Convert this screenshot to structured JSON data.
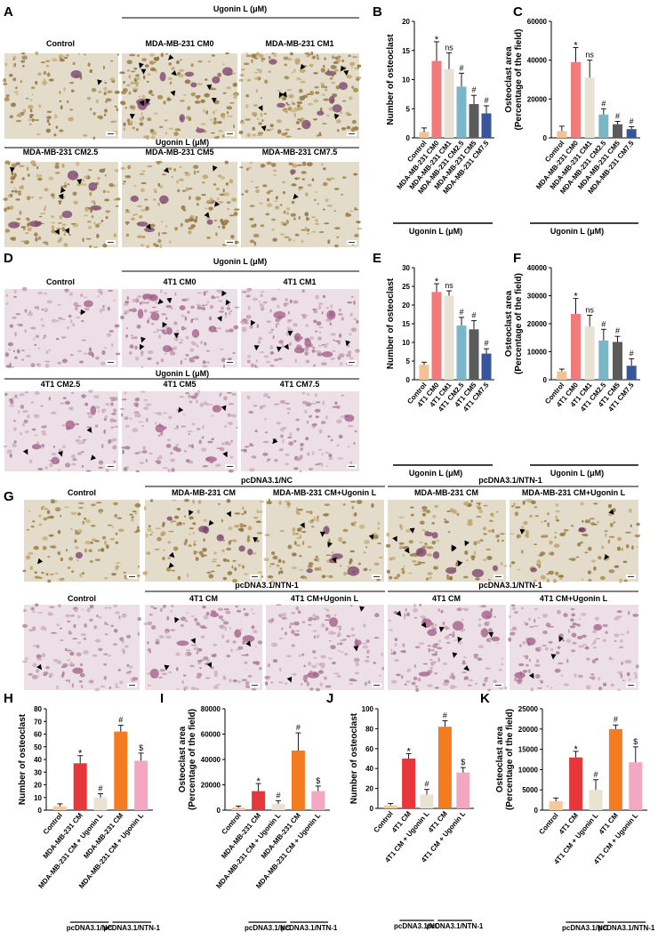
{
  "panels": {
    "A": {
      "label": "A",
      "group_label": "Ugonin L (μM)",
      "group_label_2": "Ugonin L (μM)",
      "images": [
        "Control",
        "MDA-MB-231 CM0",
        "MDA-MB-231 CM1",
        "MDA-MB-231 CM2.5",
        "MDA-MB-231 CM5",
        "MDA-MB-231 CM7.5"
      ]
    },
    "D": {
      "label": "D",
      "group_label": "Ugonin L (μM)",
      "group_label_2": "Ugonin L (μM)",
      "images": [
        "Control",
        "4T1 CM0",
        "4T1 CM1",
        "4T1 CM2.5",
        "4T1 CM5",
        "4T1 CM7.5"
      ]
    },
    "G": {
      "label": "G",
      "row1_groups": [
        "pcDNA3.1/NC",
        "pcDNA3.1/NTN-1"
      ],
      "row1_images": [
        "Control",
        "MDA-MB-231 CM",
        "MDA-MB-231 CM+Ugonin L",
        "MDA-MB-231 CM",
        "MDA-MB-231 CM+Ugonin L"
      ],
      "row2_groups": [
        "pcDNA3.1/NTN-1",
        "pcDNA3.1/NTN-1"
      ],
      "row2_images": [
        "Control",
        "4T1 CM",
        "4T1 CM+Ugonin L",
        "4T1 CM",
        "4T1 CM+Ugonin L"
      ]
    }
  },
  "colors": {
    "control": "#f2c294",
    "cm0": "#f27a7a",
    "cm1": "#e8e2d4",
    "cm25": "#79b6c8",
    "cm5": "#5b5b5b",
    "cm75": "#36559a",
    "h_control": "#f5c89e",
    "h_cm": "#e8373a",
    "h_cmug": "#e9e3d2",
    "h_ntn": "#f47c20",
    "h_ntnug": "#f4a7c1"
  },
  "chart_data": [
    {
      "panel": "B",
      "type": "bar",
      "ylabel": "Number of osteoclast",
      "ylim": [
        0,
        20
      ],
      "yticks": [
        0,
        5,
        10,
        15,
        20
      ],
      "categories": [
        "Control",
        "MDA-MB-231 CM0",
        "MDA-MB-231 CM1",
        "MDA-MB-231 CM2.5",
        "MDA-MB-231 CM5",
        "MDA-MB-231 CM7.5"
      ],
      "values": [
        1,
        13.2,
        11.8,
        8.8,
        5.8,
        4.2
      ],
      "errors": [
        0.7,
        3.3,
        2.8,
        2.3,
        1.5,
        1.3
      ],
      "marks": [
        "",
        "*",
        "ns",
        "#",
        "#",
        "#"
      ],
      "group_label": "Ugonin L (μM)"
    },
    {
      "panel": "C",
      "type": "bar",
      "ylabel": "Osteoclast area\n(Percentage of the field)",
      "ylim": [
        0,
        60000
      ],
      "yticks": [
        0,
        20000,
        40000,
        60000
      ],
      "categories": [
        "Control",
        "MDA-MB-231 CM0",
        "MDA-MB-231 CM1",
        "MDA-MB-231 CM2.5",
        "MDA-MB-231 CM5",
        "MDA-MB-231 CM7.5"
      ],
      "values": [
        3500,
        39000,
        31000,
        12000,
        7000,
        4500
      ],
      "errors": [
        2500,
        7500,
        9000,
        3000,
        1500,
        1200
      ],
      "marks": [
        "",
        "*",
        "ns",
        "#",
        "#",
        "#"
      ],
      "group_label": "Ugonin L (μM)"
    },
    {
      "panel": "E",
      "type": "bar",
      "ylabel": "Number of osteoclast",
      "ylim": [
        0,
        30
      ],
      "yticks": [
        0,
        5,
        10,
        15,
        20,
        25,
        30
      ],
      "categories": [
        "Control",
        "4T1 CM0",
        "4T1 CM1",
        "4T1 CM2.5",
        "4T1 CM5",
        "4T1 CM7.5"
      ],
      "values": [
        4,
        23.5,
        22.5,
        14.5,
        13.5,
        7
      ],
      "errors": [
        0.7,
        2.2,
        1.3,
        2.2,
        2.3,
        1.3
      ],
      "marks": [
        "",
        "*",
        "ns",
        "#",
        "#",
        "#"
      ],
      "group_label": "Ugonin L (μM)"
    },
    {
      "panel": "F",
      "type": "bar",
      "ylabel": "Osteoclast area\n(Percentage of the field)",
      "ylim": [
        0,
        40000
      ],
      "yticks": [
        0,
        10000,
        20000,
        30000,
        40000
      ],
      "categories": [
        "Control",
        "4T1 CM0",
        "4T1 CM1",
        "4T1 CM2.5",
        "4T1 CM5",
        "4T1 CM7.5"
      ],
      "values": [
        3000,
        23500,
        19000,
        14000,
        13500,
        5000
      ],
      "errors": [
        800,
        5500,
        4000,
        4000,
        2000,
        2500
      ],
      "marks": [
        "",
        "*",
        "ns",
        "#",
        "#",
        "#"
      ],
      "group_label": "Ugonin L (μM)"
    },
    {
      "panel": "H",
      "type": "bar",
      "ylabel": "Number of osteoclast",
      "ylim": [
        0,
        80
      ],
      "yticks": [
        0,
        10,
        20,
        30,
        40,
        50,
        60,
        70,
        80
      ],
      "categories": [
        "Control",
        "MDA-MB-231 CM",
        "MDA-MB-231 CM + Ugonin L",
        "MDA-MB-231 CM",
        "MDA-MB-231 CM + Ugonin L"
      ],
      "values": [
        3,
        37,
        10,
        62,
        39
      ],
      "errors": [
        2,
        6,
        3,
        5,
        6
      ],
      "marks": [
        "",
        "*",
        "#",
        "#",
        "$"
      ],
      "groups": [
        "pcDNA3.1/NC",
        "pcDNA3.1/NTN-1"
      ]
    },
    {
      "panel": "I",
      "type": "bar",
      "ylabel": "Osteoclast area\n(Percentage of the field)",
      "ylim": [
        0,
        80000
      ],
      "yticks": [
        0,
        20000,
        40000,
        60000,
        80000
      ],
      "categories": [
        "Control",
        "MDA-MB-231 CM",
        "MDA-MB-231 CM + Ugonin L",
        "MDA-MB-231 CM",
        "MDA-MB-231 CM + Ugonin L"
      ],
      "values": [
        2000,
        15000,
        5000,
        47000,
        15000
      ],
      "errors": [
        1200,
        6000,
        2500,
        14000,
        4000
      ],
      "marks": [
        "",
        "*",
        "#",
        "#",
        "$"
      ],
      "groups": [
        "pcDNA3.1/NC",
        "pcDNA3.1/NTN-1"
      ]
    },
    {
      "panel": "J",
      "type": "bar",
      "ylabel": "Number of osteoclast",
      "ylim": [
        0,
        100
      ],
      "yticks": [
        0,
        20,
        40,
        60,
        80,
        100
      ],
      "categories": [
        "Control",
        "4T1 CM",
        "4T1 CM + Ugonin L",
        "4T1 CM",
        "4T1 CM + Ugonin L"
      ],
      "values": [
        3,
        50,
        14,
        82,
        36
      ],
      "errors": [
        2,
        5,
        5,
        6,
        5
      ],
      "marks": [
        "",
        "*",
        "#",
        "#",
        "$"
      ],
      "groups": [
        "pcDNA3.1/NC",
        "pcDNA3.1/NTN-1"
      ]
    },
    {
      "panel": "K",
      "type": "bar",
      "ylabel": "Osteoclast area\n(Percentage of the field)",
      "ylim": [
        0,
        25000
      ],
      "yticks": [
        0,
        5000,
        10000,
        15000,
        20000,
        25000
      ],
      "categories": [
        "Control",
        "4T1 CM",
        "4T1 CM + Ugonin L",
        "4T1 CM",
        "4T1 CM + Ugonin L"
      ],
      "values": [
        2200,
        13000,
        5000,
        20000,
        11800
      ],
      "errors": [
        800,
        1500,
        2500,
        1000,
        3800
      ],
      "marks": [
        "",
        "*",
        "#",
        "#",
        "$"
      ],
      "groups": [
        "pcDNA3.1/NC",
        "pcDNA3.1/NTN-1"
      ]
    }
  ]
}
